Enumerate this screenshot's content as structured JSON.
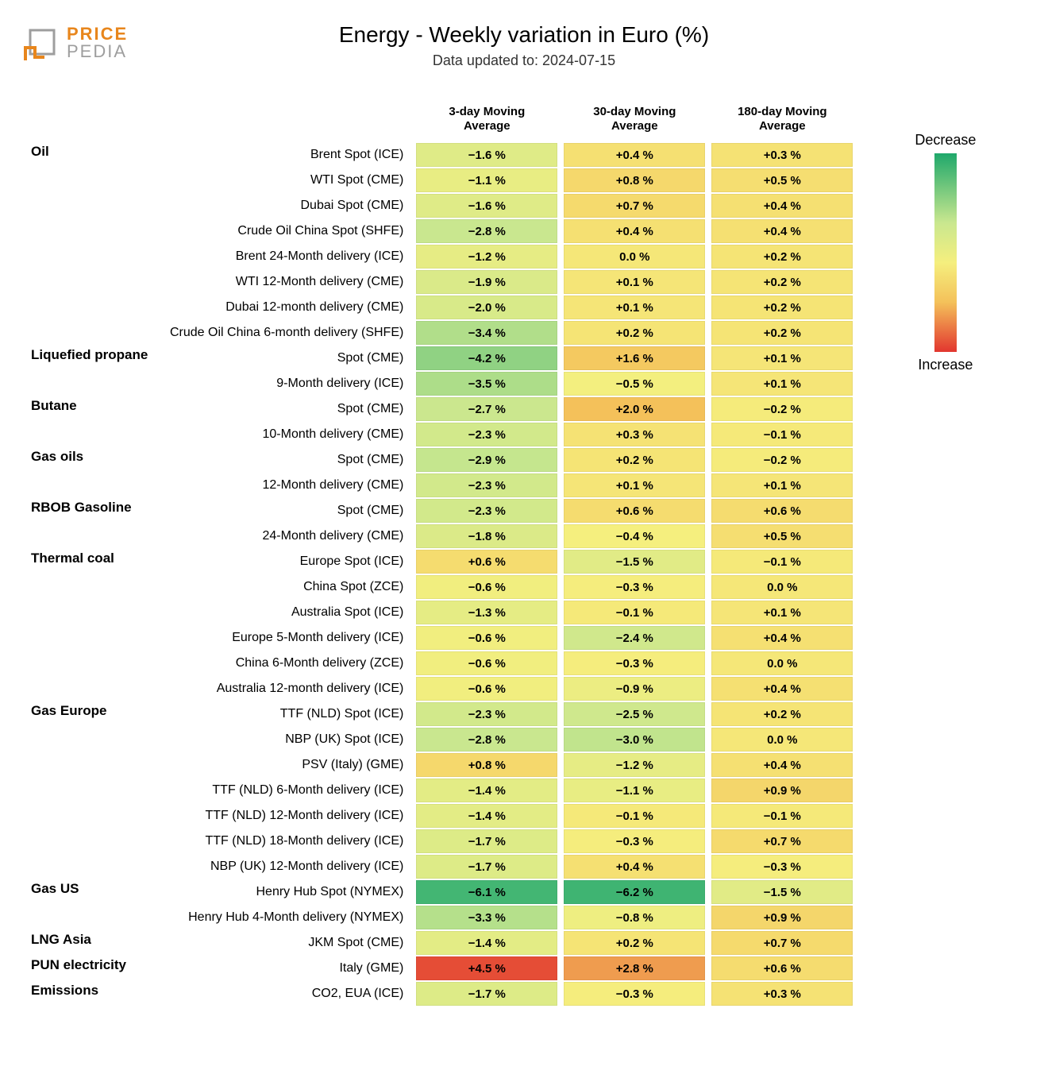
{
  "brand": {
    "top": "PRICE",
    "bot": "PEDIA"
  },
  "title": "Energy - Weekly variation in Euro (%)",
  "subtitle": "Data updated to: 2024-07-15",
  "columns": [
    "3-day Moving\nAverage",
    "30-day Moving\nAverage",
    "180-day Moving\nAverage"
  ],
  "legend": {
    "top": "Decrease",
    "bottom": "Increase"
  },
  "gradient_stops": [
    {
      "pct": 0,
      "color": "#1fa86b"
    },
    {
      "pct": 35,
      "color": "#c9e78f"
    },
    {
      "pct": 55,
      "color": "#f5ef7e"
    },
    {
      "pct": 75,
      "color": "#f4c15a"
    },
    {
      "pct": 100,
      "color": "#e2362f"
    }
  ],
  "value_range": {
    "min": -7.0,
    "max": 5.0
  },
  "chart_type": "heatmap-table",
  "cell_font_size": 15,
  "label_font_size": 16,
  "category_font_size": 17,
  "title_font_size": 28,
  "subtitle_font_size": 18,
  "rows": [
    {
      "category": "Oil",
      "label": "Brent Spot (ICE)",
      "values": [
        -1.6,
        0.4,
        0.3
      ]
    },
    {
      "category": "",
      "label": "WTI Spot (CME)",
      "values": [
        -1.1,
        0.8,
        0.5
      ]
    },
    {
      "category": "",
      "label": "Dubai Spot (CME)",
      "values": [
        -1.6,
        0.7,
        0.4
      ]
    },
    {
      "category": "",
      "label": "Crude Oil China Spot (SHFE)",
      "values": [
        -2.8,
        0.4,
        0.4
      ]
    },
    {
      "category": "",
      "label": "Brent 24-Month delivery (ICE)",
      "values": [
        -1.2,
        0.0,
        0.2
      ]
    },
    {
      "category": "",
      "label": "WTI 12-Month delivery (CME)",
      "values": [
        -1.9,
        0.1,
        0.2
      ]
    },
    {
      "category": "",
      "label": "Dubai 12-month delivery (CME)",
      "values": [
        -2.0,
        0.1,
        0.2
      ]
    },
    {
      "category": "",
      "label": "Crude Oil China 6-month delivery (SHFE)",
      "values": [
        -3.4,
        0.2,
        0.2
      ]
    },
    {
      "category": "Liquefied propane",
      "label": "Spot (CME)",
      "values": [
        -4.2,
        1.6,
        0.1
      ]
    },
    {
      "category": "",
      "label": "9-Month delivery (ICE)",
      "values": [
        -3.5,
        -0.5,
        0.1
      ]
    },
    {
      "category": "Butane",
      "label": "Spot (CME)",
      "values": [
        -2.7,
        2.0,
        -0.2
      ]
    },
    {
      "category": "",
      "label": "10-Month delivery (CME)",
      "values": [
        -2.3,
        0.3,
        -0.1
      ]
    },
    {
      "category": "Gas oils",
      "label": "Spot (CME)",
      "values": [
        -2.9,
        0.2,
        -0.2
      ]
    },
    {
      "category": "",
      "label": "12-Month delivery (CME)",
      "values": [
        -2.3,
        0.1,
        0.1
      ]
    },
    {
      "category": "RBOB Gasoline",
      "label": "Spot (CME)",
      "values": [
        -2.3,
        0.6,
        0.6
      ]
    },
    {
      "category": "",
      "label": "24-Month delivery (CME)",
      "values": [
        -1.8,
        -0.4,
        0.5
      ]
    },
    {
      "category": "Thermal coal",
      "label": "Europe Spot (ICE)",
      "values": [
        0.6,
        -1.5,
        -0.1
      ]
    },
    {
      "category": "",
      "label": "China Spot (ZCE)",
      "values": [
        -0.6,
        -0.3,
        0.0
      ]
    },
    {
      "category": "",
      "label": "Australia Spot (ICE)",
      "values": [
        -1.3,
        -0.1,
        0.1
      ]
    },
    {
      "category": "",
      "label": "Europe 5-Month delivery (ICE)",
      "values": [
        -0.6,
        -2.4,
        0.4
      ]
    },
    {
      "category": "",
      "label": "China 6-Month delivery (ZCE)",
      "values": [
        -0.6,
        -0.3,
        0.0
      ]
    },
    {
      "category": "",
      "label": "Australia 12-month delivery (ICE)",
      "values": [
        -0.6,
        -0.9,
        0.4
      ]
    },
    {
      "category": "Gas Europe",
      "label": "TTF (NLD) Spot (ICE)",
      "values": [
        -2.3,
        -2.5,
        0.2
      ]
    },
    {
      "category": "",
      "label": "NBP (UK) Spot (ICE)",
      "values": [
        -2.8,
        -3.0,
        0.0
      ]
    },
    {
      "category": "",
      "label": "PSV (Italy) (GME)",
      "values": [
        0.8,
        -1.2,
        0.4
      ]
    },
    {
      "category": "",
      "label": "TTF (NLD) 6-Month delivery (ICE)",
      "values": [
        -1.4,
        -1.1,
        0.9
      ]
    },
    {
      "category": "",
      "label": "TTF (NLD) 12-Month delivery (ICE)",
      "values": [
        -1.4,
        -0.1,
        -0.1
      ]
    },
    {
      "category": "",
      "label": "TTF (NLD) 18-Month delivery (ICE)",
      "values": [
        -1.7,
        -0.3,
        0.7
      ]
    },
    {
      "category": "",
      "label": "NBP (UK) 12-Month delivery (ICE)",
      "values": [
        -1.7,
        0.4,
        -0.3
      ]
    },
    {
      "category": "Gas US",
      "label": "Henry Hub Spot (NYMEX)",
      "values": [
        -6.1,
        -6.2,
        -1.5
      ]
    },
    {
      "category": "",
      "label": "Henry Hub 4-Month delivery (NYMEX)",
      "values": [
        -3.3,
        -0.8,
        0.9
      ]
    },
    {
      "category": "LNG Asia",
      "label": "JKM Spot (CME)",
      "values": [
        -1.4,
        0.2,
        0.7
      ]
    },
    {
      "category": "PUN electricity",
      "label": "Italy (GME)",
      "values": [
        4.5,
        2.8,
        0.6
      ]
    },
    {
      "category": "Emissions",
      "label": "CO2, EUA (ICE)",
      "values": [
        -1.7,
        -0.3,
        0.3
      ]
    }
  ]
}
